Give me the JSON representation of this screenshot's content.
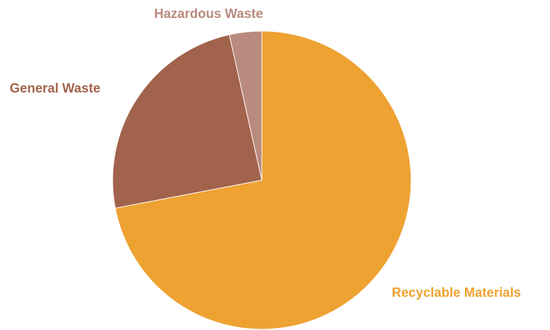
{
  "chart_data": {
    "type": "pie",
    "title": "",
    "slices": [
      {
        "label": "Recyclable Materials",
        "value": 72,
        "color": "#EEA232"
      },
      {
        "label": "General Waste",
        "value": 24.5,
        "color": "#A2634C"
      },
      {
        "label": "Hazardous Waste",
        "value": 3.5,
        "color": "#B98A7E"
      }
    ],
    "start_angle_deg": 0,
    "direction": "clockwise",
    "legend": "none",
    "label_placement": "outside"
  }
}
